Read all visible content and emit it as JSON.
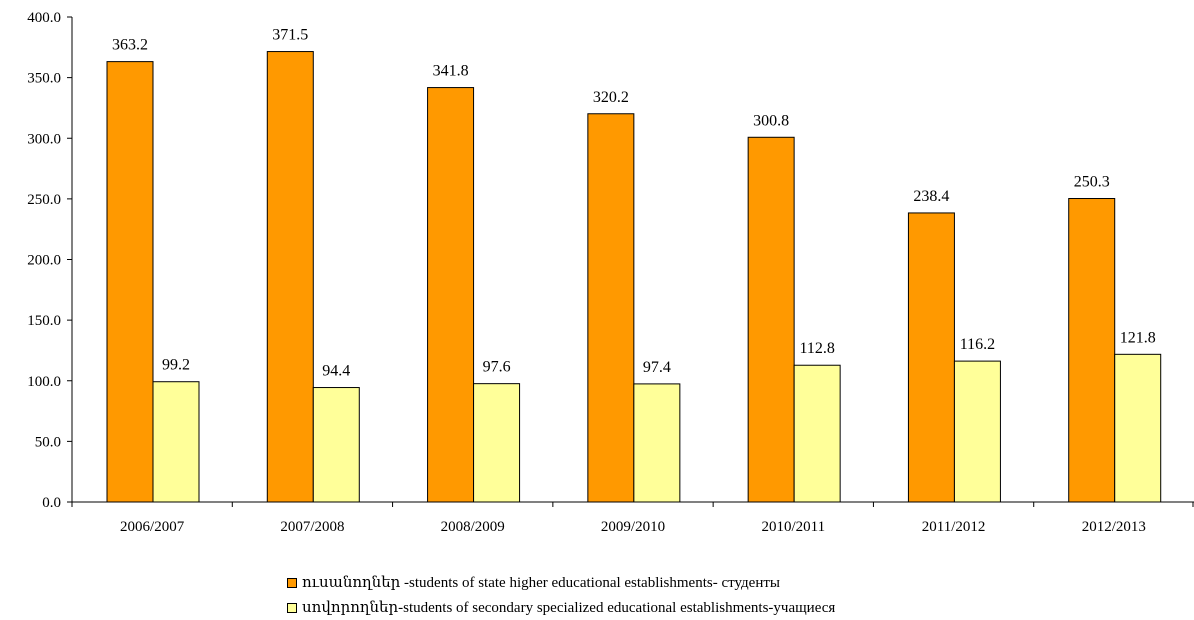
{
  "chart_data": {
    "type": "bar",
    "categories": [
      "2006/2007",
      "2007/2008",
      "2008/2009",
      "2009/2010",
      "2010/2011",
      "2011/2012",
      "2012/2013"
    ],
    "series": [
      {
        "name": "ուսանողներ -students of state higher educational establishments- студенты",
        "values": [
          363.2,
          371.5,
          341.8,
          320.2,
          300.8,
          238.4,
          250.3
        ],
        "labels": [
          "363.2",
          "371.5",
          "341.8",
          "320.2",
          "300.8",
          "238.4",
          "250.3"
        ],
        "color": "#FF9900"
      },
      {
        "name": "սովորողներ-students of secondary specialized educational establishments-учащиеся",
        "values": [
          99.2,
          94.4,
          97.6,
          97.4,
          112.8,
          116.2,
          121.8
        ],
        "labels": [
          "99.2",
          "94.4",
          "97.6",
          "97.4",
          "112.8",
          "116.2",
          "121.8"
        ],
        "color": "#FFFF99"
      }
    ],
    "yticks": [
      "0.0",
      "50.0",
      "100.0",
      "150.0",
      "200.0",
      "250.0",
      "300.0",
      "350.0",
      "400.0"
    ],
    "ylim": [
      0,
      400
    ],
    "grid": false,
    "legend_position": "bottom"
  }
}
